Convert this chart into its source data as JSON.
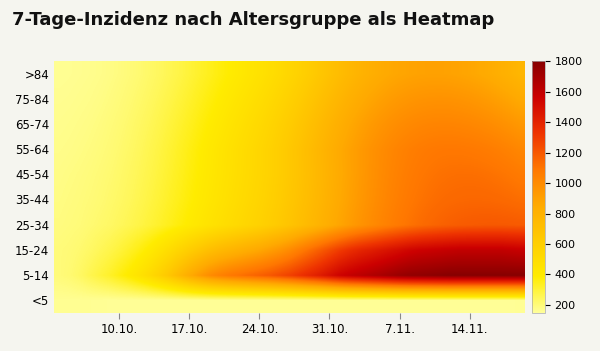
{
  "title": "7-Tage-Inzidenz nach Altersgruppe als Heatmap",
  "age_groups": [
    "<5",
    "5-14",
    "15-24",
    "25-34",
    "35-44",
    "45-54",
    "55-64",
    "65-74",
    "75-84",
    ">84"
  ],
  "x_tick_labels": [
    "10.10.",
    "17.10.",
    "24.10.",
    "31.10.",
    "7.11.",
    "14.11."
  ],
  "x_tick_positions": [
    6,
    13,
    20,
    27,
    34,
    41
  ],
  "n_days": 47,
  "vmin": 150,
  "vmax": 1800,
  "colorbar_ticks": [
    200,
    400,
    600,
    800,
    1000,
    1200,
    1400,
    1600,
    1800
  ],
  "background_color": "#f5f5ef",
  "title_fontsize": 13,
  "data": [
    [
      160,
      160,
      160,
      160,
      158,
      156,
      155,
      155,
      155,
      155,
      155,
      155,
      155,
      155,
      155,
      155,
      155,
      155,
      155,
      155,
      155,
      155,
      155,
      155,
      155,
      155,
      155,
      155,
      155,
      155,
      155,
      155,
      155,
      155,
      155,
      155,
      155,
      155,
      155,
      155,
      155,
      155,
      155,
      155,
      155,
      155,
      158
    ],
    [
      200,
      210,
      230,
      260,
      290,
      320,
      360,
      400,
      450,
      510,
      580,
      660,
      750,
      840,
      920,
      990,
      1040,
      1080,
      1110,
      1140,
      1170,
      1200,
      1240,
      1280,
      1330,
      1380,
      1430,
      1490,
      1550,
      1590,
      1620,
      1650,
      1680,
      1710,
      1740,
      1760,
      1770,
      1780,
      1790,
      1800,
      1800,
      1800,
      1800,
      1800,
      1800,
      1800,
      1800
    ],
    [
      200,
      205,
      215,
      230,
      250,
      270,
      295,
      325,
      360,
      400,
      450,
      500,
      555,
      610,
      660,
      710,
      750,
      780,
      810,
      840,
      870,
      910,
      950,
      1000,
      1060,
      1120,
      1180,
      1240,
      1300,
      1350,
      1390,
      1420,
      1450,
      1480,
      1510,
      1540,
      1560,
      1570,
      1580,
      1590,
      1600,
      1600,
      1600,
      1600,
      1600,
      1590,
      1580
    ],
    [
      190,
      195,
      200,
      210,
      220,
      230,
      245,
      260,
      278,
      298,
      320,
      345,
      370,
      398,
      425,
      452,
      478,
      503,
      528,
      553,
      578,
      608,
      640,
      675,
      713,
      752,
      793,
      835,
      877,
      918,
      957,
      992,
      1025,
      1055,
      1083,
      1108,
      1130,
      1148,
      1163,
      1175,
      1184,
      1190,
      1194,
      1196,
      1196,
      1194,
      1190
    ],
    [
      185,
      190,
      195,
      202,
      210,
      220,
      232,
      246,
      263,
      282,
      303,
      326,
      350,
      376,
      402,
      428,
      454,
      480,
      506,
      532,
      558,
      588,
      620,
      655,
      693,
      732,
      773,
      815,
      857,
      898,
      937,
      973,
      1006,
      1036,
      1062,
      1086,
      1105,
      1120,
      1132,
      1140,
      1145,
      1148,
      1148,
      1146,
      1141,
      1134,
      1125
    ],
    [
      180,
      185,
      190,
      196,
      204,
      213,
      224,
      238,
      254,
      272,
      292,
      315,
      339,
      365,
      391,
      417,
      443,
      469,
      495,
      521,
      547,
      577,
      610,
      646,
      684,
      724,
      765,
      807,
      849,
      890,
      929,
      964,
      996,
      1025,
      1050,
      1071,
      1089,
      1102,
      1112,
      1118,
      1121,
      1121,
      1118,
      1112,
      1103,
      1091,
      1077
    ],
    [
      175,
      178,
      183,
      189,
      196,
      205,
      216,
      229,
      245,
      263,
      283,
      306,
      330,
      356,
      383,
      410,
      437,
      464,
      491,
      518,
      545,
      576,
      610,
      647,
      687,
      728,
      770,
      812,
      853,
      892,
      928,
      961,
      990,
      1016,
      1038,
      1056,
      1070,
      1080,
      1086,
      1088,
      1087,
      1083,
      1076,
      1066,
      1053,
      1037,
      1019
    ],
    [
      170,
      173,
      177,
      182,
      189,
      198,
      208,
      220,
      235,
      251,
      270,
      291,
      314,
      338,
      364,
      390,
      416,
      443,
      469,
      496,
      523,
      553,
      586,
      622,
      660,
      700,
      741,
      782,
      822,
      860,
      894,
      925,
      952,
      975,
      994,
      1009,
      1020,
      1027,
      1030,
      1030,
      1026,
      1019,
      1009,
      996,
      980,
      961,
      940
    ],
    [
      165,
      167,
      171,
      175,
      181,
      189,
      199,
      210,
      223,
      238,
      255,
      274,
      295,
      318,
      342,
      366,
      391,
      416,
      441,
      466,
      492,
      521,
      552,
      586,
      622,
      660,
      699,
      738,
      776,
      812,
      844,
      873,
      898,
      920,
      937,
      950,
      959,
      964,
      966,
      964,
      958,
      949,
      936,
      920,
      900,
      878,
      854
    ],
    [
      160,
      162,
      165,
      169,
      174,
      181,
      190,
      200,
      212,
      226,
      241,
      258,
      277,
      298,
      320,
      342,
      365,
      388,
      411,
      435,
      459,
      486,
      515,
      547,
      581,
      617,
      654,
      691,
      727,
      761,
      791,
      818,
      841,
      860,
      875,
      886,
      893,
      896,
      896,
      892,
      884,
      873,
      858,
      840,
      819,
      796,
      771
    ]
  ]
}
